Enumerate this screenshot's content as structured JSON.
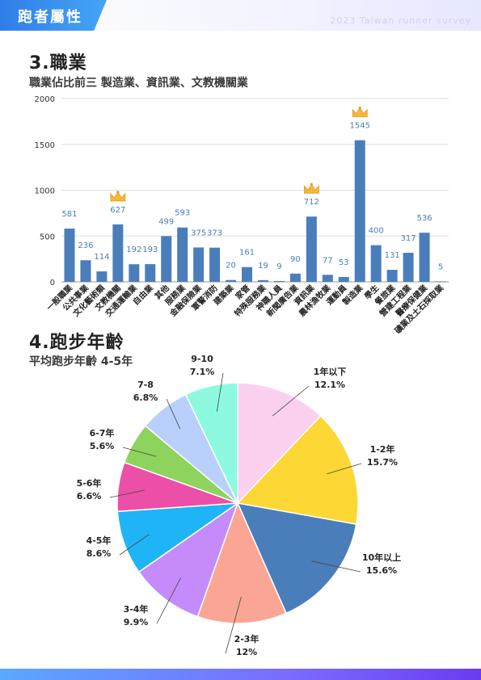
{
  "header": {
    "title": "跑者屬性",
    "survey": "2023 Taiwan runner survey"
  },
  "section3": {
    "title": "3.職業",
    "subtitle": "職業佔比前三  製造業、資訊業、文教機關業"
  },
  "section4": {
    "title": "4.跑步年齡",
    "subtitle": "平均跑步年齡  4-5年"
  },
  "chart_data": [
    {
      "type": "bar",
      "color": "#4a7ebb",
      "ylim": [
        0,
        2000
      ],
      "yticks": [
        0,
        500,
        1000,
        1500,
        2000
      ],
      "grid": true,
      "crowned_categories": [
        "文教機關",
        "資訊業",
        "製造業"
      ],
      "categories": [
        "一般職業",
        "公共事業",
        "文化藝術類",
        "文教機關",
        "交通運輸業",
        "自由業",
        "其他",
        "服務業",
        "金融保險業",
        "軍警消防",
        "建築業",
        "家管",
        "特殊服務業",
        "神職人員",
        "新聞廣告業",
        "資訊業",
        "農林漁牧業",
        "運動員",
        "製造業",
        "學生",
        "餐旅業",
        "營建工程業",
        "醫療保健業",
        "礦業及土石採取業"
      ],
      "values": [
        581,
        236,
        114,
        627,
        192,
        193,
        499,
        593,
        375,
        373,
        20,
        161,
        19,
        9,
        90,
        712,
        77,
        53,
        1545,
        400,
        131,
        317,
        536,
        5
      ]
    },
    {
      "type": "pie",
      "labels": [
        "1年以下",
        "1-2年",
        "10年以上",
        "2-3年",
        "3-4年",
        "4-5年",
        "5-6年",
        "6-7年",
        "7-8",
        "9-10"
      ],
      "values": [
        12.1,
        15.7,
        15.6,
        12,
        9.9,
        8.6,
        6.6,
        5.6,
        6.8,
        7.1
      ],
      "display": [
        "12.1%",
        "15.7%",
        "15.6%",
        "12%",
        "9.9%",
        "8.6%",
        "6.6%",
        "5.6%",
        "6.8%",
        "7.1%"
      ],
      "colors": [
        "#fcd1f0",
        "#fdd835",
        "#4a7ebb",
        "#fba694",
        "#c58bfb",
        "#1eb4f6",
        "#ec4fa8",
        "#8ed35d",
        "#b8d0fb",
        "#8dfae0"
      ]
    }
  ]
}
